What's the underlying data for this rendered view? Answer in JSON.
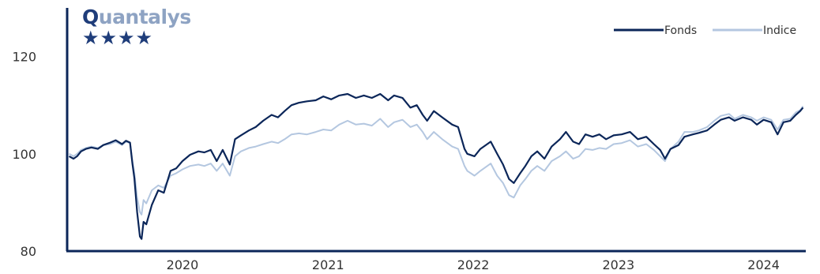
{
  "logo": {
    "text": "Quantalys",
    "rating_stars": 4,
    "star_glyph": "★"
  },
  "colors": {
    "fonds": "#0b2659",
    "indice": "#b4c7e0",
    "axis": "#0b2659",
    "logo_dark": "#1f3d7a",
    "logo_light": "#8ea3c3"
  },
  "chart_data": {
    "type": "line",
    "title": "",
    "xlabel": "",
    "ylabel": "",
    "ylim": [
      80,
      130
    ],
    "yticks": [
      80,
      100,
      120
    ],
    "xlim": [
      "2019-09-15",
      "2024-10-15"
    ],
    "xticks": [
      {
        "label": "2020",
        "date": "2020-01-01"
      },
      {
        "label": "2021",
        "date": "2021-01-01"
      },
      {
        "label": "2022",
        "date": "2022-01-01"
      },
      {
        "label": "2023",
        "date": "2023-01-01"
      },
      {
        "label": "2024",
        "date": "2024-01-01"
      }
    ],
    "legend": {
      "position": "top-right"
    },
    "grid": false,
    "series": [
      {
        "name": "Fonds",
        "color": "#0b2659",
        "points": [
          [
            "2019-09-20",
            99.5
          ],
          [
            "2019-10-01",
            99.0
          ],
          [
            "2019-10-10",
            99.5
          ],
          [
            "2019-10-20",
            100.5
          ],
          [
            "2019-11-01",
            101.0
          ],
          [
            "2019-11-15",
            101.3
          ],
          [
            "2019-12-01",
            101.0
          ],
          [
            "2019-12-15",
            101.8
          ],
          [
            "2020-01-01",
            102.3
          ],
          [
            "2020-01-15",
            102.8
          ],
          [
            "2020-01-31",
            102.0
          ],
          [
            "2020-02-10",
            102.7
          ],
          [
            "2020-02-20",
            102.3
          ],
          [
            "2020-02-26",
            98.0
          ],
          [
            "2020-03-02",
            95.0
          ],
          [
            "2020-03-09",
            88.0
          ],
          [
            "2020-03-16",
            83.0
          ],
          [
            "2020-03-20",
            82.5
          ],
          [
            "2020-03-25",
            86.0
          ],
          [
            "2020-04-01",
            85.5
          ],
          [
            "2020-04-15",
            89.5
          ],
          [
            "2020-05-01",
            92.5
          ],
          [
            "2020-05-15",
            92.0
          ],
          [
            "2020-06-01",
            96.5
          ],
          [
            "2020-06-15",
            97.0
          ],
          [
            "2020-07-01",
            98.5
          ],
          [
            "2020-07-20",
            99.8
          ],
          [
            "2020-08-10",
            100.5
          ],
          [
            "2020-08-25",
            100.3
          ],
          [
            "2020-09-10",
            100.8
          ],
          [
            "2020-09-25",
            98.5
          ],
          [
            "2020-10-10",
            100.8
          ],
          [
            "2020-10-28",
            97.8
          ],
          [
            "2020-11-10",
            103.0
          ],
          [
            "2020-11-25",
            103.8
          ],
          [
            "2020-12-15",
            104.8
          ],
          [
            "2021-01-01",
            105.5
          ],
          [
            "2021-01-20",
            106.8
          ],
          [
            "2021-02-10",
            108.0
          ],
          [
            "2021-02-26",
            107.5
          ],
          [
            "2021-03-15",
            108.8
          ],
          [
            "2021-04-01",
            110.0
          ],
          [
            "2021-04-20",
            110.5
          ],
          [
            "2021-05-10",
            110.8
          ],
          [
            "2021-06-01",
            111.0
          ],
          [
            "2021-06-20",
            111.8
          ],
          [
            "2021-07-10",
            111.2
          ],
          [
            "2021-07-30",
            112.0
          ],
          [
            "2021-08-20",
            112.3
          ],
          [
            "2021-09-10",
            111.5
          ],
          [
            "2021-09-30",
            112.0
          ],
          [
            "2021-10-20",
            111.5
          ],
          [
            "2021-11-10",
            112.3
          ],
          [
            "2021-11-30",
            111.0
          ],
          [
            "2021-12-15",
            112.0
          ],
          [
            "2022-01-05",
            111.5
          ],
          [
            "2022-01-25",
            109.5
          ],
          [
            "2022-02-10",
            110.0
          ],
          [
            "2022-02-25",
            108.0
          ],
          [
            "2022-03-08",
            106.8
          ],
          [
            "2022-03-25",
            108.8
          ],
          [
            "2022-04-15",
            107.5
          ],
          [
            "2022-05-10",
            106.0
          ],
          [
            "2022-05-25",
            105.5
          ],
          [
            "2022-06-10",
            101.0
          ],
          [
            "2022-06-17",
            100.0
          ],
          [
            "2022-07-05",
            99.5
          ],
          [
            "2022-07-20",
            101.0
          ],
          [
            "2022-08-15",
            102.5
          ],
          [
            "2022-08-31",
            100.0
          ],
          [
            "2022-09-15",
            97.8
          ],
          [
            "2022-09-30",
            94.8
          ],
          [
            "2022-10-12",
            94.0
          ],
          [
            "2022-10-28",
            96.0
          ],
          [
            "2022-11-10",
            97.5
          ],
          [
            "2022-11-25",
            99.5
          ],
          [
            "2022-12-10",
            100.5
          ],
          [
            "2022-12-28",
            99.0
          ],
          [
            "2023-01-15",
            101.5
          ],
          [
            "2023-02-05",
            103.0
          ],
          [
            "2023-02-20",
            104.5
          ],
          [
            "2023-03-10",
            102.5
          ],
          [
            "2023-03-25",
            102.0
          ],
          [
            "2023-04-10",
            104.0
          ],
          [
            "2023-04-28",
            103.5
          ],
          [
            "2023-05-15",
            104.0
          ],
          [
            "2023-06-01",
            103.0
          ],
          [
            "2023-06-20",
            103.8
          ],
          [
            "2023-07-10",
            104.0
          ],
          [
            "2023-07-31",
            104.5
          ],
          [
            "2023-08-20",
            103.0
          ],
          [
            "2023-09-10",
            103.5
          ],
          [
            "2023-09-29",
            102.0
          ],
          [
            "2023-10-15",
            100.8
          ],
          [
            "2023-10-27",
            99.0
          ],
          [
            "2023-11-10",
            101.0
          ],
          [
            "2023-11-30",
            101.8
          ],
          [
            "2023-12-15",
            103.5
          ],
          [
            "2024-01-05",
            104.0
          ],
          [
            "2024-01-20",
            104.3
          ],
          [
            "2024-02-10",
            104.8
          ],
          [
            "2024-02-28",
            106.0
          ],
          [
            "2024-03-15",
            107.0
          ],
          [
            "2024-04-05",
            107.5
          ],
          [
            "2024-04-19",
            106.8
          ],
          [
            "2024-05-10",
            107.5
          ],
          [
            "2024-05-31",
            107.0
          ],
          [
            "2024-06-14",
            106.0
          ],
          [
            "2024-07-01",
            107.0
          ],
          [
            "2024-07-20",
            106.5
          ],
          [
            "2024-08-05",
            104.0
          ],
          [
            "2024-08-20",
            106.5
          ],
          [
            "2024-09-06",
            106.8
          ],
          [
            "2024-09-20",
            108.0
          ],
          [
            "2024-10-01",
            108.8
          ],
          [
            "2024-10-08",
            109.5
          ]
        ]
      },
      {
        "name": "Indice",
        "color": "#b4c7e0",
        "points": [
          [
            "2019-09-20",
            100.0
          ],
          [
            "2019-10-01",
            99.5
          ],
          [
            "2019-10-10",
            100.0
          ],
          [
            "2019-10-20",
            100.8
          ],
          [
            "2019-11-01",
            101.2
          ],
          [
            "2019-11-15",
            101.5
          ],
          [
            "2019-12-01",
            101.2
          ],
          [
            "2019-12-15",
            101.8
          ],
          [
            "2020-01-01",
            102.0
          ],
          [
            "2020-01-15",
            102.5
          ],
          [
            "2020-01-31",
            101.8
          ],
          [
            "2020-02-10",
            102.5
          ],
          [
            "2020-02-20",
            102.2
          ],
          [
            "2020-02-26",
            98.5
          ],
          [
            "2020-03-02",
            96.0
          ],
          [
            "2020-03-09",
            91.0
          ],
          [
            "2020-03-16",
            88.0
          ],
          [
            "2020-03-20",
            87.5
          ],
          [
            "2020-03-25",
            90.5
          ],
          [
            "2020-04-01",
            89.8
          ],
          [
            "2020-04-15",
            92.5
          ],
          [
            "2020-05-01",
            93.5
          ],
          [
            "2020-05-15",
            93.0
          ],
          [
            "2020-06-01",
            95.5
          ],
          [
            "2020-06-15",
            96.0
          ],
          [
            "2020-07-01",
            96.8
          ],
          [
            "2020-07-20",
            97.5
          ],
          [
            "2020-08-10",
            97.8
          ],
          [
            "2020-08-25",
            97.5
          ],
          [
            "2020-09-10",
            98.0
          ],
          [
            "2020-09-25",
            96.5
          ],
          [
            "2020-10-10",
            98.0
          ],
          [
            "2020-10-28",
            95.5
          ],
          [
            "2020-11-10",
            99.5
          ],
          [
            "2020-11-25",
            100.5
          ],
          [
            "2020-12-15",
            101.2
          ],
          [
            "2021-01-01",
            101.5
          ],
          [
            "2021-01-20",
            102.0
          ],
          [
            "2021-02-10",
            102.5
          ],
          [
            "2021-02-26",
            102.2
          ],
          [
            "2021-03-15",
            103.0
          ],
          [
            "2021-04-01",
            104.0
          ],
          [
            "2021-04-20",
            104.2
          ],
          [
            "2021-05-10",
            104.0
          ],
          [
            "2021-06-01",
            104.5
          ],
          [
            "2021-06-20",
            105.0
          ],
          [
            "2021-07-10",
            104.8
          ],
          [
            "2021-07-30",
            106.0
          ],
          [
            "2021-08-20",
            106.8
          ],
          [
            "2021-09-10",
            106.0
          ],
          [
            "2021-09-30",
            106.2
          ],
          [
            "2021-10-20",
            105.8
          ],
          [
            "2021-11-10",
            107.2
          ],
          [
            "2021-11-30",
            105.5
          ],
          [
            "2021-12-15",
            106.5
          ],
          [
            "2022-01-05",
            107.0
          ],
          [
            "2022-01-25",
            105.5
          ],
          [
            "2022-02-10",
            106.0
          ],
          [
            "2022-02-25",
            104.5
          ],
          [
            "2022-03-08",
            103.0
          ],
          [
            "2022-03-25",
            104.5
          ],
          [
            "2022-04-15",
            103.0
          ],
          [
            "2022-05-10",
            101.5
          ],
          [
            "2022-05-25",
            101.0
          ],
          [
            "2022-06-10",
            97.5
          ],
          [
            "2022-06-17",
            96.5
          ],
          [
            "2022-07-05",
            95.5
          ],
          [
            "2022-07-20",
            96.5
          ],
          [
            "2022-08-15",
            98.0
          ],
          [
            "2022-08-31",
            95.5
          ],
          [
            "2022-09-15",
            94.0
          ],
          [
            "2022-09-30",
            91.5
          ],
          [
            "2022-10-12",
            91.0
          ],
          [
            "2022-10-28",
            93.5
          ],
          [
            "2022-11-10",
            94.8
          ],
          [
            "2022-11-25",
            96.5
          ],
          [
            "2022-12-10",
            97.5
          ],
          [
            "2022-12-28",
            96.5
          ],
          [
            "2023-01-15",
            98.5
          ],
          [
            "2023-02-05",
            99.5
          ],
          [
            "2023-02-20",
            100.5
          ],
          [
            "2023-03-10",
            99.0
          ],
          [
            "2023-03-25",
            99.5
          ],
          [
            "2023-04-10",
            101.0
          ],
          [
            "2023-04-28",
            100.8
          ],
          [
            "2023-05-15",
            101.2
          ],
          [
            "2023-06-01",
            101.0
          ],
          [
            "2023-06-20",
            102.0
          ],
          [
            "2023-07-10",
            102.2
          ],
          [
            "2023-07-31",
            102.8
          ],
          [
            "2023-08-20",
            101.5
          ],
          [
            "2023-09-10",
            102.0
          ],
          [
            "2023-09-29",
            100.8
          ],
          [
            "2023-10-15",
            99.5
          ],
          [
            "2023-10-27",
            98.5
          ],
          [
            "2023-11-10",
            101.0
          ],
          [
            "2023-11-30",
            102.5
          ],
          [
            "2023-12-15",
            104.5
          ],
          [
            "2024-01-05",
            104.5
          ],
          [
            "2024-01-20",
            104.8
          ],
          [
            "2024-02-10",
            105.5
          ],
          [
            "2024-02-28",
            106.8
          ],
          [
            "2024-03-15",
            107.8
          ],
          [
            "2024-04-05",
            108.2
          ],
          [
            "2024-04-19",
            107.2
          ],
          [
            "2024-05-10",
            108.0
          ],
          [
            "2024-05-31",
            107.5
          ],
          [
            "2024-06-14",
            106.8
          ],
          [
            "2024-07-01",
            107.5
          ],
          [
            "2024-07-20",
            107.0
          ],
          [
            "2024-08-05",
            105.0
          ],
          [
            "2024-08-20",
            107.0
          ],
          [
            "2024-09-06",
            107.2
          ],
          [
            "2024-09-20",
            108.5
          ],
          [
            "2024-10-01",
            109.0
          ],
          [
            "2024-10-08",
            109.8
          ]
        ]
      }
    ]
  }
}
